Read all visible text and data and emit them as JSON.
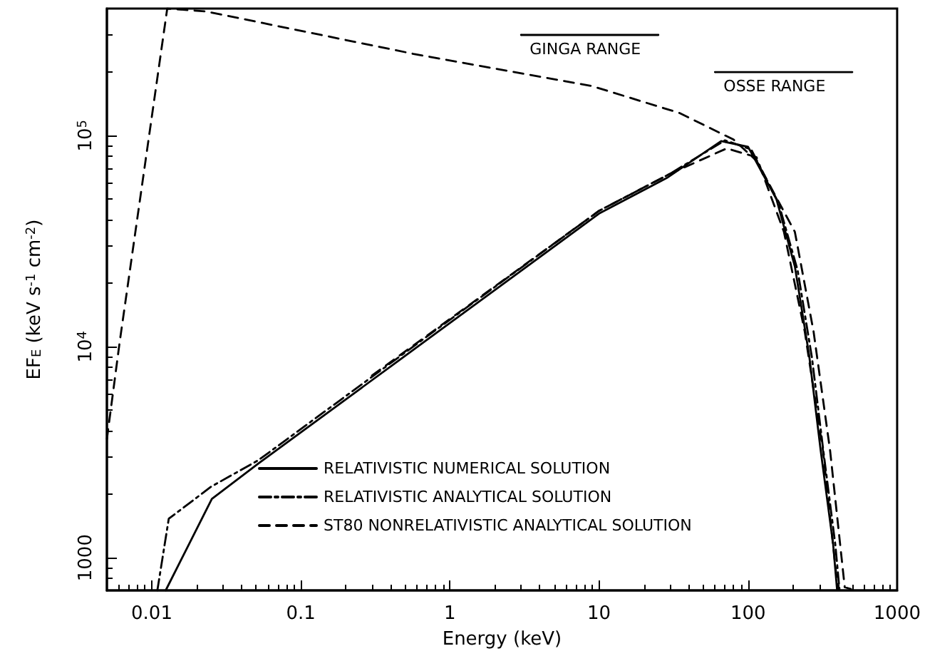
{
  "chart_data": {
    "type": "line",
    "xlabel": "Energy (keV)",
    "ylabel": "EF$_{E}$ (keV s$^{-1}$ cm$^{-2}$)",
    "log": "xy",
    "xlim": [
      0.005,
      1000
    ],
    "ylim": [
      700,
      400000
    ],
    "xticks": [
      0.01,
      0.1,
      1,
      10,
      100,
      1000
    ],
    "yticks": [
      1000,
      {
        "value": 10000,
        "label": "10$^{4}$"
      },
      {
        "value": 100000,
        "label": "10$^{5}$"
      }
    ],
    "grid": false,
    "legend": "bottom left",
    "marker": "none",
    "series": [
      {
        "name": "RELATIVISTIC NUMERICAL SOLUTION",
        "color": "#000000",
        "line_style": "solid",
        "x": [
          0.0124,
          0.0253,
          0.052,
          0.68,
          10,
          28.5,
          66,
          100,
          155,
          206,
          257,
          307,
          372,
          395
        ],
        "values": [
          700,
          1900,
          2800,
          10600,
          42700,
          63000,
          94200,
          88500,
          50000,
          24000,
          9080,
          3220,
          1160,
          710
        ]
      },
      {
        "name": "RELATIVISTIC ANALYTICAL SOLUTION",
        "color": "#000000",
        "line_style": "dashdot",
        "x": [
          0.0109,
          0.013,
          0.025,
          0.052,
          0.68,
          10,
          30,
          70,
          105,
          160,
          215,
          268,
          320,
          385,
          410
        ],
        "values": [
          700,
          1530,
          2170,
          2900,
          11000,
          44000,
          66000,
          95000,
          86000,
          48000,
          23000,
          8900,
          3200,
          1150,
          710
        ]
      },
      {
        "name": "ST80 NONRELATIVISTIC ANALYTICAL SOLUTION",
        "color": "#000000",
        "line_style": "dashed",
        "x": [
          0.005,
          0.0061,
          0.0127,
          0.023,
          0.57,
          8.9,
          34.7,
          80,
          114,
          206,
          275,
          355,
          445,
          490
        ],
        "values": [
          3650,
          10600,
          400000,
          388000,
          244000,
          172000,
          128000,
          95700,
          76000,
          35000,
          11800,
          3220,
          725,
          710
        ]
      },
      {
        "color": "#000000",
        "line_style": "dashed",
        "x": [
          0.3,
          10,
          30,
          72,
          114,
          174,
          240,
          318,
          400
        ],
        "values": [
          7300,
          44000,
          66000,
          87000,
          79000,
          35000,
          11800,
          3220,
          710
        ]
      },
      {
        "name": "GINGA RANGE",
        "color": "#000000",
        "line_style": "solid",
        "x": [
          3,
          25
        ],
        "values": [
          300000,
          300000
        ]
      },
      {
        "name": "OSSE RANGE",
        "color": "#000000",
        "line_style": "solid",
        "x": [
          60,
          500
        ],
        "values": [
          200000,
          200000
        ]
      }
    ]
  }
}
